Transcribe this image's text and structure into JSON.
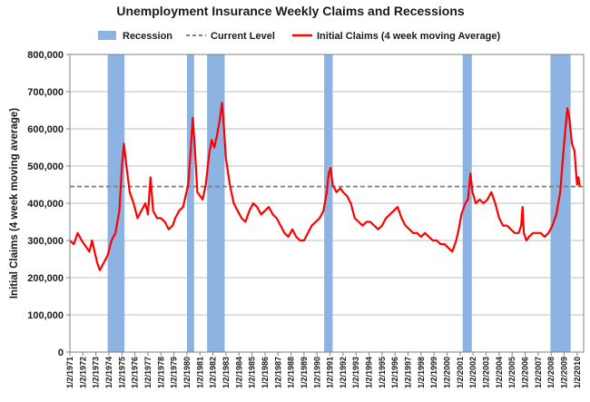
{
  "chart_data": {
    "type": "line",
    "title": "Unemployment Insurance Weekly Claims and Recessions",
    "ylabel": "Initial Claims (4 week moving average)",
    "xlabel": "",
    "ylim": [
      0,
      800000
    ],
    "yticks": [
      0,
      100000,
      200000,
      300000,
      400000,
      500000,
      600000,
      700000,
      800000
    ],
    "ytick_labels": [
      "0",
      "100,000",
      "200,000",
      "300,000",
      "400,000",
      "500,000",
      "600,000",
      "700,000",
      "800,000"
    ],
    "xlim": [
      1971.0,
      2010.5
    ],
    "xtick_labels": [
      "1/2/1971",
      "1/2/1972",
      "1/2/1973",
      "1/2/1974",
      "1/2/1975",
      "1/2/1976",
      "1/2/1977",
      "1/2/1978",
      "1/2/1979",
      "1/2/1980",
      "1/2/1981",
      "1/2/1982",
      "1/2/1983",
      "1/2/1984",
      "1/2/1985",
      "1/2/1986",
      "1/2/1987",
      "1/2/1988",
      "1/2/1989",
      "1/2/1990",
      "1/2/1991",
      "1/2/1992",
      "1/2/1993",
      "1/2/1994",
      "1/2/1995",
      "1/2/1996",
      "1/2/1997",
      "1/2/1998",
      "1/2/1999",
      "1/2/2000",
      "1/2/2001",
      "1/2/2002",
      "1/2/2003",
      "1/2/2004",
      "1/2/2005",
      "1/2/2006",
      "1/2/2007",
      "1/2/2008",
      "1/2/2009",
      "1/2/2010"
    ],
    "grid": true,
    "legend_position": "top",
    "legend": [
      {
        "name": "Recession",
        "kind": "band",
        "color": "#8db3e2"
      },
      {
        "name": "Current Level",
        "kind": "dashed",
        "color": "#808080"
      },
      {
        "name": "Initial Claims (4 week moving Average)",
        "kind": "line",
        "color": "#ff0000"
      }
    ],
    "recessions": [
      {
        "start": 1973.9,
        "end": 1975.2
      },
      {
        "start": 1980.0,
        "end": 1980.55
      },
      {
        "start": 1981.55,
        "end": 1982.9
      },
      {
        "start": 1990.55,
        "end": 1991.2
      },
      {
        "start": 2001.2,
        "end": 2001.9
      },
      {
        "start": 2007.95,
        "end": 2009.5
      }
    ],
    "current_level": 445000,
    "series": [
      {
        "name": "Initial Claims (4 week moving Average)",
        "color": "#ff0000",
        "points": [
          [
            1971.0,
            300000
          ],
          [
            1971.3,
            290000
          ],
          [
            1971.6,
            320000
          ],
          [
            1971.9,
            300000
          ],
          [
            1972.2,
            285000
          ],
          [
            1972.5,
            270000
          ],
          [
            1972.7,
            300000
          ],
          [
            1972.9,
            270000
          ],
          [
            1973.1,
            240000
          ],
          [
            1973.3,
            220000
          ],
          [
            1973.6,
            240000
          ],
          [
            1973.9,
            260000
          ],
          [
            1974.2,
            300000
          ],
          [
            1974.5,
            320000
          ],
          [
            1974.8,
            380000
          ],
          [
            1975.0,
            500000
          ],
          [
            1975.15,
            560000
          ],
          [
            1975.35,
            500000
          ],
          [
            1975.6,
            430000
          ],
          [
            1975.9,
            400000
          ],
          [
            1976.2,
            360000
          ],
          [
            1976.5,
            380000
          ],
          [
            1976.8,
            400000
          ],
          [
            1977.0,
            370000
          ],
          [
            1977.2,
            470000
          ],
          [
            1977.4,
            380000
          ],
          [
            1977.7,
            360000
          ],
          [
            1978.0,
            360000
          ],
          [
            1978.3,
            350000
          ],
          [
            1978.6,
            330000
          ],
          [
            1978.9,
            340000
          ],
          [
            1979.1,
            360000
          ],
          [
            1979.4,
            380000
          ],
          [
            1979.7,
            390000
          ],
          [
            1979.9,
            420000
          ],
          [
            1980.1,
            450000
          ],
          [
            1980.3,
            550000
          ],
          [
            1980.45,
            630000
          ],
          [
            1980.6,
            550000
          ],
          [
            1980.8,
            430000
          ],
          [
            1981.0,
            420000
          ],
          [
            1981.2,
            410000
          ],
          [
            1981.45,
            450000
          ],
          [
            1981.7,
            530000
          ],
          [
            1981.9,
            570000
          ],
          [
            1982.1,
            550000
          ],
          [
            1982.3,
            580000
          ],
          [
            1982.5,
            620000
          ],
          [
            1982.7,
            670000
          ],
          [
            1982.85,
            600000
          ],
          [
            1983.0,
            520000
          ],
          [
            1983.3,
            450000
          ],
          [
            1983.6,
            400000
          ],
          [
            1983.9,
            380000
          ],
          [
            1984.2,
            360000
          ],
          [
            1984.5,
            350000
          ],
          [
            1984.8,
            380000
          ],
          [
            1985.1,
            400000
          ],
          [
            1985.4,
            390000
          ],
          [
            1985.7,
            370000
          ],
          [
            1986.0,
            380000
          ],
          [
            1986.3,
            390000
          ],
          [
            1986.6,
            370000
          ],
          [
            1986.9,
            360000
          ],
          [
            1987.2,
            340000
          ],
          [
            1987.5,
            320000
          ],
          [
            1987.8,
            310000
          ],
          [
            1988.1,
            330000
          ],
          [
            1988.4,
            310000
          ],
          [
            1988.7,
            300000
          ],
          [
            1989.0,
            300000
          ],
          [
            1989.3,
            320000
          ],
          [
            1989.6,
            340000
          ],
          [
            1989.9,
            350000
          ],
          [
            1990.2,
            360000
          ],
          [
            1990.5,
            380000
          ],
          [
            1990.75,
            430000
          ],
          [
            1990.9,
            480000
          ],
          [
            1991.05,
            495000
          ],
          [
            1991.2,
            450000
          ],
          [
            1991.5,
            430000
          ],
          [
            1991.8,
            440000
          ],
          [
            1992.0,
            430000
          ],
          [
            1992.3,
            420000
          ],
          [
            1992.6,
            400000
          ],
          [
            1992.9,
            360000
          ],
          [
            1993.2,
            350000
          ],
          [
            1993.5,
            340000
          ],
          [
            1993.8,
            350000
          ],
          [
            1994.1,
            350000
          ],
          [
            1994.4,
            340000
          ],
          [
            1994.7,
            330000
          ],
          [
            1995.0,
            340000
          ],
          [
            1995.3,
            360000
          ],
          [
            1995.6,
            370000
          ],
          [
            1995.9,
            380000
          ],
          [
            1996.2,
            390000
          ],
          [
            1996.5,
            360000
          ],
          [
            1996.8,
            340000
          ],
          [
            1997.1,
            330000
          ],
          [
            1997.4,
            320000
          ],
          [
            1997.7,
            320000
          ],
          [
            1998.0,
            310000
          ],
          [
            1998.3,
            320000
          ],
          [
            1998.6,
            310000
          ],
          [
            1998.9,
            300000
          ],
          [
            1999.2,
            300000
          ],
          [
            1999.5,
            290000
          ],
          [
            1999.8,
            290000
          ],
          [
            2000.1,
            280000
          ],
          [
            2000.4,
            270000
          ],
          [
            2000.7,
            300000
          ],
          [
            2000.9,
            330000
          ],
          [
            2001.1,
            370000
          ],
          [
            2001.4,
            400000
          ],
          [
            2001.6,
            410000
          ],
          [
            2001.8,
            480000
          ],
          [
            2001.95,
            430000
          ],
          [
            2002.2,
            400000
          ],
          [
            2002.5,
            410000
          ],
          [
            2002.8,
            400000
          ],
          [
            2003.1,
            410000
          ],
          [
            2003.4,
            430000
          ],
          [
            2003.7,
            400000
          ],
          [
            2004.0,
            360000
          ],
          [
            2004.3,
            340000
          ],
          [
            2004.6,
            340000
          ],
          [
            2004.9,
            330000
          ],
          [
            2005.2,
            320000
          ],
          [
            2005.5,
            320000
          ],
          [
            2005.7,
            340000
          ],
          [
            2005.8,
            390000
          ],
          [
            2005.9,
            320000
          ],
          [
            2006.1,
            300000
          ],
          [
            2006.3,
            310000
          ],
          [
            2006.6,
            320000
          ],
          [
            2006.9,
            320000
          ],
          [
            2007.2,
            320000
          ],
          [
            2007.5,
            310000
          ],
          [
            2007.8,
            320000
          ],
          [
            2008.1,
            340000
          ],
          [
            2008.4,
            370000
          ],
          [
            2008.7,
            430000
          ],
          [
            2008.9,
            520000
          ],
          [
            2009.1,
            600000
          ],
          [
            2009.25,
            655000
          ],
          [
            2009.4,
            630000
          ],
          [
            2009.6,
            560000
          ],
          [
            2009.8,
            540000
          ],
          [
            2009.9,
            490000
          ],
          [
            2010.0,
            450000
          ],
          [
            2010.1,
            470000
          ],
          [
            2010.2,
            445000
          ]
        ]
      }
    ]
  }
}
